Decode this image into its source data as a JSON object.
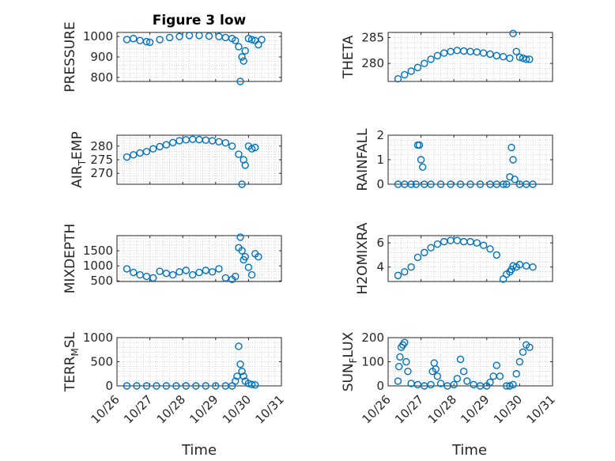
{
  "figure": {
    "title": "Figure 3 low",
    "xlabel": "Time",
    "x_tick_labels": [
      "10/26",
      "10/27",
      "10/28",
      "10/29",
      "10/30",
      "10/31"
    ],
    "marker": "circle-open",
    "marker_color": "#0072BD"
  },
  "chart_data": [
    {
      "type": "scatter",
      "ylabel_main": "PRESSURE",
      "ylabel_sub": "",
      "xlim": [
        0,
        5
      ],
      "ylim": [
        780,
        1020
      ],
      "yticks": [
        800,
        900,
        1000
      ],
      "grid": true,
      "x": [
        0.3,
        0.5,
        0.7,
        0.9,
        1.0,
        1.3,
        1.6,
        1.9,
        2.2,
        2.5,
        2.8,
        3.1,
        3.3,
        3.5,
        3.6,
        3.7,
        3.75,
        3.8,
        3.85,
        3.9,
        4.0,
        4.1,
        4.2,
        4.3,
        4.4
      ],
      "y": [
        985,
        990,
        980,
        975,
        972,
        985,
        995,
        1000,
        1005,
        1005,
        1002,
        1000,
        995,
        990,
        980,
        950,
        780,
        900,
        880,
        930,
        990,
        985,
        980,
        960,
        985
      ]
    },
    {
      "type": "scatter",
      "ylabel_main": "THETA",
      "ylabel_sub": "",
      "xlim": [
        0,
        5
      ],
      "ylim": [
        276.5,
        286
      ],
      "yticks": [
        280,
        285
      ],
      "grid": true,
      "x": [
        0.3,
        0.5,
        0.7,
        0.9,
        1.1,
        1.3,
        1.5,
        1.7,
        1.9,
        2.1,
        2.3,
        2.5,
        2.7,
        2.9,
        3.1,
        3.3,
        3.5,
        3.7,
        3.8,
        3.9,
        4.0,
        4.1,
        4.2,
        4.3
      ],
      "y": [
        277,
        277.8,
        278.5,
        279.2,
        280,
        280.8,
        281.5,
        282,
        282.3,
        282.5,
        282.4,
        282.3,
        282.2,
        282,
        281.8,
        281.5,
        281.3,
        281,
        285.8,
        282.3,
        281.2,
        281,
        280.8,
        280.8
      ]
    },
    {
      "type": "scatter",
      "ylabel_main": "AIR",
      "ylabel_sub": "T",
      "ylabel_end": "EMP",
      "xlim": [
        0,
        5
      ],
      "ylim": [
        266,
        284
      ],
      "yticks": [
        270,
        275,
        280
      ],
      "grid": true,
      "x": [
        0.3,
        0.5,
        0.7,
        0.9,
        1.1,
        1.3,
        1.5,
        1.7,
        1.9,
        2.1,
        2.3,
        2.5,
        2.7,
        2.9,
        3.1,
        3.3,
        3.5,
        3.7,
        3.8,
        3.85,
        3.9,
        4.0,
        4.1,
        4.2
      ],
      "y": [
        276,
        276.8,
        277.5,
        278,
        279,
        279.8,
        280.5,
        281.3,
        282,
        282.3,
        282.5,
        282.4,
        282.2,
        282,
        281.6,
        281.2,
        280,
        277,
        266,
        275,
        273,
        280,
        279,
        279.5
      ]
    },
    {
      "type": "scatter",
      "ylabel_main": "RAINFALL",
      "ylabel_sub": "",
      "xlim": [
        0,
        5
      ],
      "ylim": [
        0,
        2
      ],
      "yticks": [
        0,
        1,
        2
      ],
      "grid": true,
      "x": [
        0.3,
        0.5,
        0.7,
        0.85,
        0.9,
        0.95,
        1.0,
        1.05,
        1.1,
        1.3,
        1.6,
        1.9,
        2.2,
        2.5,
        2.8,
        3.1,
        3.3,
        3.5,
        3.6,
        3.7,
        3.75,
        3.8,
        3.85,
        4.0,
        4.2,
        4.4
      ],
      "y": [
        0,
        0,
        0,
        0,
        1.6,
        1.6,
        1.0,
        0.7,
        0,
        0,
        0,
        0,
        0,
        0,
        0,
        0,
        0,
        0,
        0,
        0.3,
        1.5,
        1.0,
        0.2,
        0,
        0,
        0
      ]
    },
    {
      "type": "scatter",
      "ylabel_main": "MIXDEPTH",
      "ylabel_sub": "",
      "xlim": [
        0,
        5
      ],
      "ylim": [
        480,
        2000
      ],
      "yticks": [
        500,
        1000,
        1500
      ],
      "grid": true,
      "x": [
        0.3,
        0.5,
        0.7,
        0.9,
        1.1,
        1.3,
        1.5,
        1.7,
        1.9,
        2.1,
        2.3,
        2.5,
        2.7,
        2.9,
        3.1,
        3.3,
        3.5,
        3.6,
        3.7,
        3.75,
        3.8,
        3.85,
        3.9,
        4.0,
        4.1,
        4.2,
        4.3
      ],
      "y": [
        900,
        780,
        700,
        650,
        600,
        820,
        750,
        700,
        800,
        850,
        700,
        780,
        850,
        800,
        900,
        600,
        550,
        650,
        1600,
        1950,
        1500,
        1200,
        1300,
        950,
        700,
        1400,
        1300
      ]
    },
    {
      "type": "scatter",
      "ylabel_main": "H2OMIXRA",
      "ylabel_sub": "",
      "xlim": [
        0,
        5
      ],
      "ylim": [
        2.8,
        6.6
      ],
      "yticks": [
        4,
        6
      ],
      "grid": true,
      "x": [
        0.3,
        0.5,
        0.7,
        0.9,
        1.1,
        1.3,
        1.5,
        1.7,
        1.9,
        2.1,
        2.3,
        2.5,
        2.7,
        2.9,
        3.1,
        3.3,
        3.5,
        3.6,
        3.7,
        3.75,
        3.8,
        3.9,
        4.0,
        4.2,
        4.4
      ],
      "y": [
        3.3,
        3.6,
        4.0,
        4.8,
        5.2,
        5.6,
        5.9,
        6.1,
        6.2,
        6.2,
        6.1,
        6.1,
        6.0,
        5.8,
        5.5,
        5.0,
        3.0,
        3.4,
        3.6,
        3.8,
        4.1,
        4.0,
        4.2,
        4.1,
        4.0
      ]
    },
    {
      "type": "scatter",
      "ylabel_main": "TERR",
      "ylabel_sub": "M",
      "ylabel_end": "SL",
      "xlim": [
        0,
        5
      ],
      "ylim": [
        0,
        1000
      ],
      "yticks": [
        0,
        500,
        1000
      ],
      "grid": true,
      "x": [
        0.3,
        0.6,
        0.9,
        1.2,
        1.5,
        1.8,
        2.1,
        2.4,
        2.7,
        3.0,
        3.3,
        3.5,
        3.6,
        3.65,
        3.7,
        3.75,
        3.8,
        3.85,
        3.9,
        4.0,
        4.1,
        4.2
      ],
      "y": [
        0,
        0,
        0,
        0,
        0,
        0,
        0,
        0,
        0,
        0,
        0,
        0,
        100,
        200,
        820,
        450,
        300,
        200,
        100,
        50,
        30,
        20
      ]
    },
    {
      "type": "scatter",
      "ylabel_main": "SUN",
      "ylabel_sub": "F",
      "ylabel_end": "LUX",
      "xlim": [
        0,
        5
      ],
      "ylim": [
        0,
        200
      ],
      "yticks": [
        0,
        100,
        200
      ],
      "grid": true,
      "x": [
        0.3,
        0.33,
        0.36,
        0.4,
        0.45,
        0.5,
        0.55,
        0.6,
        0.7,
        0.9,
        1.1,
        1.3,
        1.35,
        1.4,
        1.45,
        1.5,
        1.6,
        1.8,
        2.0,
        2.1,
        2.2,
        2.3,
        2.4,
        2.6,
        2.8,
        3.0,
        3.1,
        3.2,
        3.3,
        3.4,
        3.6,
        3.7,
        3.8,
        3.9,
        4.0,
        4.1,
        4.2,
        4.3
      ],
      "y": [
        20,
        80,
        120,
        160,
        170,
        180,
        100,
        60,
        10,
        5,
        0,
        5,
        60,
        95,
        70,
        40,
        10,
        0,
        5,
        30,
        110,
        60,
        20,
        5,
        0,
        0,
        15,
        40,
        85,
        40,
        0,
        0,
        5,
        50,
        100,
        140,
        170,
        160
      ]
    }
  ]
}
